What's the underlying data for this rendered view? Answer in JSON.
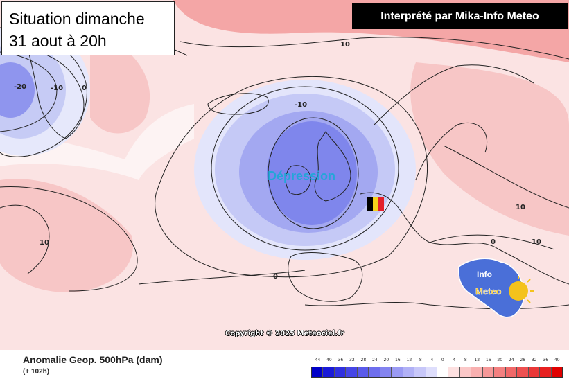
{
  "title": {
    "line1": "Situation dimanche",
    "line2": "31 aout à 20h"
  },
  "credit": "Interprété par Mika-Info Meteo",
  "map": {
    "system_label": "Dépression",
    "copyright": "Copyright © 2025 Meteociel.fr",
    "contour_labels": [
      "-20",
      "-10",
      "0",
      "10",
      "-10",
      "10",
      "10",
      "0",
      "0",
      "10"
    ],
    "colors": {
      "ocean_positive": "#f7c6c6",
      "ocean_neutral": "#fbe3e3",
      "negative_light": "#d9dcf7",
      "negative_mid": "#a9aef0",
      "negative_deep": "#7d83ea",
      "positive_strong": "#f29b9b",
      "land_line": "#222222"
    },
    "belgium_flag": [
      "#000000",
      "#f5d21b",
      "#e3202b"
    ],
    "logo": {
      "word1": "Info",
      "word2": "Meteo",
      "colors": [
        "#4a6fd8",
        "#f4c21c"
      ]
    }
  },
  "legend": {
    "title": "Anomalie Geop. 500hPa (dam)",
    "subtitle": "(+ 102h)",
    "scale": [
      "-44",
      "-40",
      "-36",
      "-32",
      "-28",
      "-24",
      "-20",
      "-16",
      "-12",
      "-8",
      "-4",
      "0",
      "4",
      "8",
      "12",
      "16",
      "20",
      "24",
      "28",
      "32",
      "36",
      "40"
    ],
    "scale_colors": [
      "#0000c8",
      "#1a1ad8",
      "#3030e0",
      "#4646e6",
      "#5a5aea",
      "#6e6eee",
      "#8484f0",
      "#9a9af3",
      "#b1b1f6",
      "#c7c7f9",
      "#dedefc",
      "#ffffff",
      "#fde0e0",
      "#fbc8c8",
      "#f9b0b0",
      "#f69898",
      "#f38080",
      "#f06868",
      "#ed5050",
      "#ea3838",
      "#e72020",
      "#e00000"
    ]
  }
}
